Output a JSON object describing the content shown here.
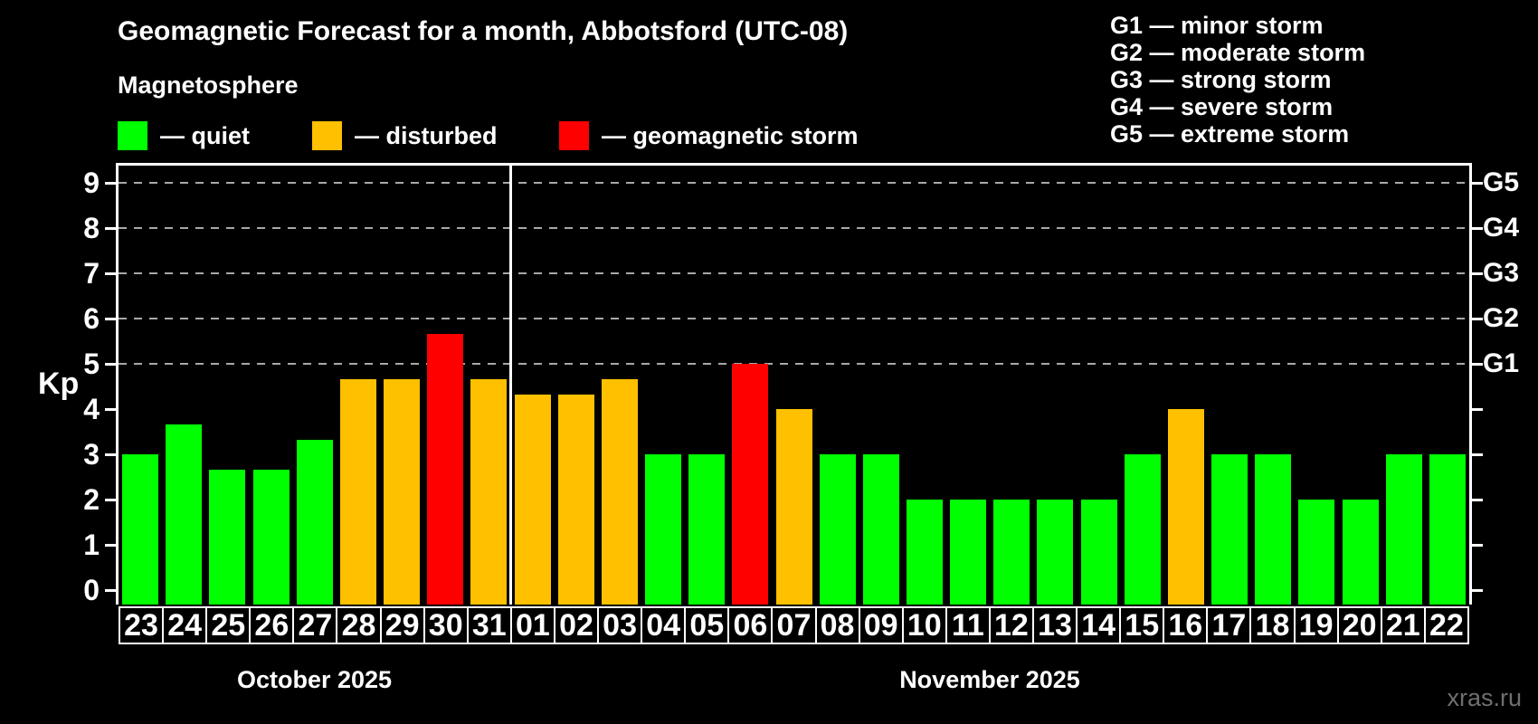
{
  "header": {
    "title": "Geomagnetic Forecast for a month, Abbotsford (UTC-08)",
    "subtitle": "Magnetosphere"
  },
  "legend": {
    "items": [
      {
        "key": "quiet",
        "label": "— quiet",
        "color": "#00ff00"
      },
      {
        "key": "disturbed",
        "label": "— disturbed",
        "color": "#ffc000"
      },
      {
        "key": "storm",
        "label": "— geomagnetic storm",
        "color": "#ff0000"
      }
    ]
  },
  "g_scale": {
    "items": [
      {
        "text": "G1 — minor storm"
      },
      {
        "text": "G2 — moderate storm"
      },
      {
        "text": "G3 — strong storm"
      },
      {
        "text": "G4 — severe storm"
      },
      {
        "text": "G5 — extreme storm"
      }
    ]
  },
  "axes": {
    "y_label": "Kp",
    "y_ticks": [
      0,
      1,
      2,
      3,
      4,
      5,
      6,
      7,
      8,
      9
    ],
    "right_labels": [
      {
        "kp": 5,
        "label": "G1"
      },
      {
        "kp": 6,
        "label": "G2"
      },
      {
        "kp": 7,
        "label": "G3"
      },
      {
        "kp": 8,
        "label": "G4"
      },
      {
        "kp": 9,
        "label": "G5"
      }
    ]
  },
  "months": [
    {
      "label": "October 2025",
      "days": 9
    },
    {
      "label": "November 2025",
      "days": 22
    }
  ],
  "watermark": "xras.ru",
  "colors": {
    "quiet": "#00ff00",
    "disturbed": "#ffc000",
    "storm": "#ff0000",
    "grid": "#a8a8a8",
    "axis": "#ffffff",
    "watermark": "#6f6f6f"
  },
  "chart_data": {
    "type": "bar",
    "title": "Geomagnetic Forecast for a month, Abbotsford (UTC-08)",
    "xlabel": "",
    "ylabel": "Kp",
    "ylim": [
      0,
      9
    ],
    "grid_levels": [
      5,
      6,
      7,
      8,
      9
    ],
    "legend_position": "top-left",
    "points": [
      {
        "day": "23",
        "month": "October 2025",
        "kp": 3.0,
        "status": "quiet"
      },
      {
        "day": "24",
        "month": "October 2025",
        "kp": 3.67,
        "status": "quiet"
      },
      {
        "day": "25",
        "month": "October 2025",
        "kp": 2.67,
        "status": "quiet"
      },
      {
        "day": "26",
        "month": "October 2025",
        "kp": 2.67,
        "status": "quiet"
      },
      {
        "day": "27",
        "month": "October 2025",
        "kp": 3.33,
        "status": "quiet"
      },
      {
        "day": "28",
        "month": "October 2025",
        "kp": 4.67,
        "status": "disturbed"
      },
      {
        "day": "29",
        "month": "October 2025",
        "kp": 4.67,
        "status": "disturbed"
      },
      {
        "day": "30",
        "month": "October 2025",
        "kp": 5.67,
        "status": "storm"
      },
      {
        "day": "31",
        "month": "October 2025",
        "kp": 4.67,
        "status": "disturbed"
      },
      {
        "day": "01",
        "month": "November 2025",
        "kp": 4.33,
        "status": "disturbed"
      },
      {
        "day": "02",
        "month": "November 2025",
        "kp": 4.33,
        "status": "disturbed"
      },
      {
        "day": "03",
        "month": "November 2025",
        "kp": 4.67,
        "status": "disturbed"
      },
      {
        "day": "04",
        "month": "November 2025",
        "kp": 3.0,
        "status": "quiet"
      },
      {
        "day": "05",
        "month": "November 2025",
        "kp": 3.0,
        "status": "quiet"
      },
      {
        "day": "06",
        "month": "November 2025",
        "kp": 5.0,
        "status": "storm"
      },
      {
        "day": "07",
        "month": "November 2025",
        "kp": 4.0,
        "status": "disturbed"
      },
      {
        "day": "08",
        "month": "November 2025",
        "kp": 3.0,
        "status": "quiet"
      },
      {
        "day": "09",
        "month": "November 2025",
        "kp": 3.0,
        "status": "quiet"
      },
      {
        "day": "10",
        "month": "November 2025",
        "kp": 2.0,
        "status": "quiet"
      },
      {
        "day": "11",
        "month": "November 2025",
        "kp": 2.0,
        "status": "quiet"
      },
      {
        "day": "12",
        "month": "November 2025",
        "kp": 2.0,
        "status": "quiet"
      },
      {
        "day": "13",
        "month": "November 2025",
        "kp": 2.0,
        "status": "quiet"
      },
      {
        "day": "14",
        "month": "November 2025",
        "kp": 2.0,
        "status": "quiet"
      },
      {
        "day": "15",
        "month": "November 2025",
        "kp": 3.0,
        "status": "quiet"
      },
      {
        "day": "16",
        "month": "November 2025",
        "kp": 4.0,
        "status": "disturbed"
      },
      {
        "day": "17",
        "month": "November 2025",
        "kp": 3.0,
        "status": "quiet"
      },
      {
        "day": "18",
        "month": "November 2025",
        "kp": 3.0,
        "status": "quiet"
      },
      {
        "day": "19",
        "month": "November 2025",
        "kp": 2.0,
        "status": "quiet"
      },
      {
        "day": "20",
        "month": "November 2025",
        "kp": 2.0,
        "status": "quiet"
      },
      {
        "day": "21",
        "month": "November 2025",
        "kp": 3.0,
        "status": "quiet"
      },
      {
        "day": "22",
        "month": "November 2025",
        "kp": 3.0,
        "status": "quiet"
      }
    ]
  }
}
